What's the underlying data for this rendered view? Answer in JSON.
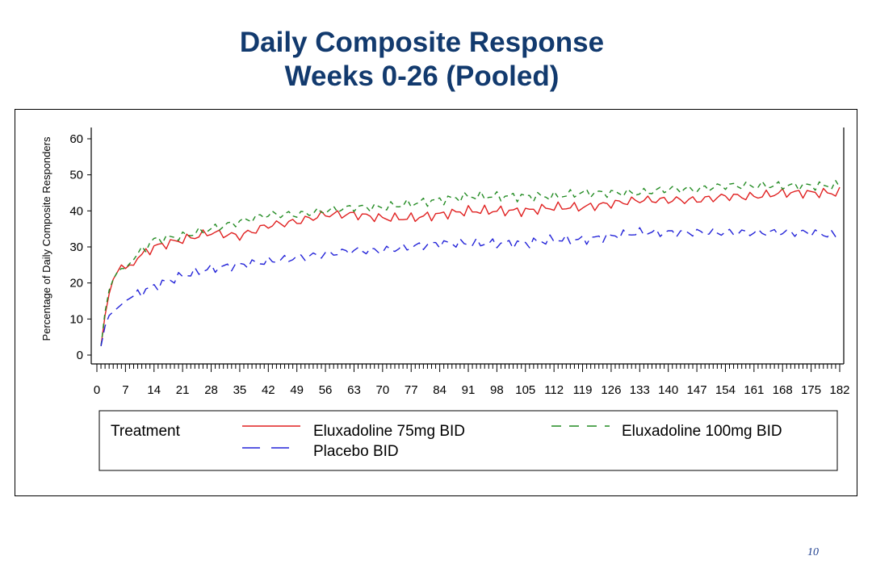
{
  "title": {
    "line1": "Daily Composite Response",
    "line2": "Weeks 0-26 (Pooled)"
  },
  "page_number": "10",
  "colors": {
    "title": "#123a6e",
    "eluxadoline_75": "#e02020",
    "eluxadoline_100": "#228b22",
    "placebo": "#2323d8"
  },
  "chart_data": {
    "type": "line",
    "title": "",
    "xlabel": "",
    "ylabel": "Percentage of Daily Composite Responders",
    "xlim": [
      0,
      182
    ],
    "ylim": [
      0,
      60
    ],
    "x_ticks": [
      "0",
      "7",
      "14",
      "21",
      "28",
      "35",
      "42",
      "49",
      "56",
      "63",
      "70",
      "77",
      "84",
      "91",
      "98",
      "105",
      "112",
      "119",
      "126",
      "133",
      "140",
      "147",
      "154",
      "161",
      "168",
      "175",
      "182"
    ],
    "y_ticks": [
      "0",
      "10",
      "20",
      "30",
      "40",
      "50",
      "60"
    ],
    "legend_title": "Treatment",
    "legend_position": "bottom",
    "x_anchor_days": [
      1,
      2,
      3,
      4,
      5,
      6,
      7,
      10,
      14,
      21,
      28,
      35,
      42,
      49,
      56,
      63,
      70,
      77,
      84,
      91,
      98,
      105,
      112,
      119,
      126,
      133,
      140,
      147,
      154,
      161,
      168,
      175,
      182
    ],
    "series": [
      {
        "name": "Eluxadoline 75mg BID",
        "style": "solid",
        "anchor_values": [
          2.5,
          11,
          17,
          21,
          23,
          25,
          24,
          27,
          30,
          32,
          34,
          33,
          36,
          37,
          39,
          39,
          38,
          38,
          39,
          40,
          40,
          40,
          41,
          41,
          42,
          43,
          43,
          43,
          44,
          44,
          45,
          45,
          45
        ]
      },
      {
        "name": "Eluxadoline 100mg BID",
        "style": "dashed",
        "anchor_values": [
          2.5,
          12,
          18,
          21,
          23,
          24,
          24,
          28,
          32,
          33,
          35,
          37,
          39,
          39,
          40,
          41,
          41,
          42,
          43,
          44,
          44,
          44,
          44,
          45,
          45,
          45,
          46,
          46,
          47,
          47,
          47,
          47,
          47
        ]
      },
      {
        "name": "Placebo BID",
        "style": "long-dash",
        "anchor_values": [
          2.5,
          8,
          11,
          12,
          13,
          14,
          15,
          17,
          19,
          22,
          24,
          25,
          26,
          27,
          28,
          29,
          29,
          30,
          31,
          31,
          31,
          31,
          32,
          32,
          33,
          34,
          34,
          34,
          34,
          34,
          34,
          34,
          33
        ]
      }
    ]
  }
}
